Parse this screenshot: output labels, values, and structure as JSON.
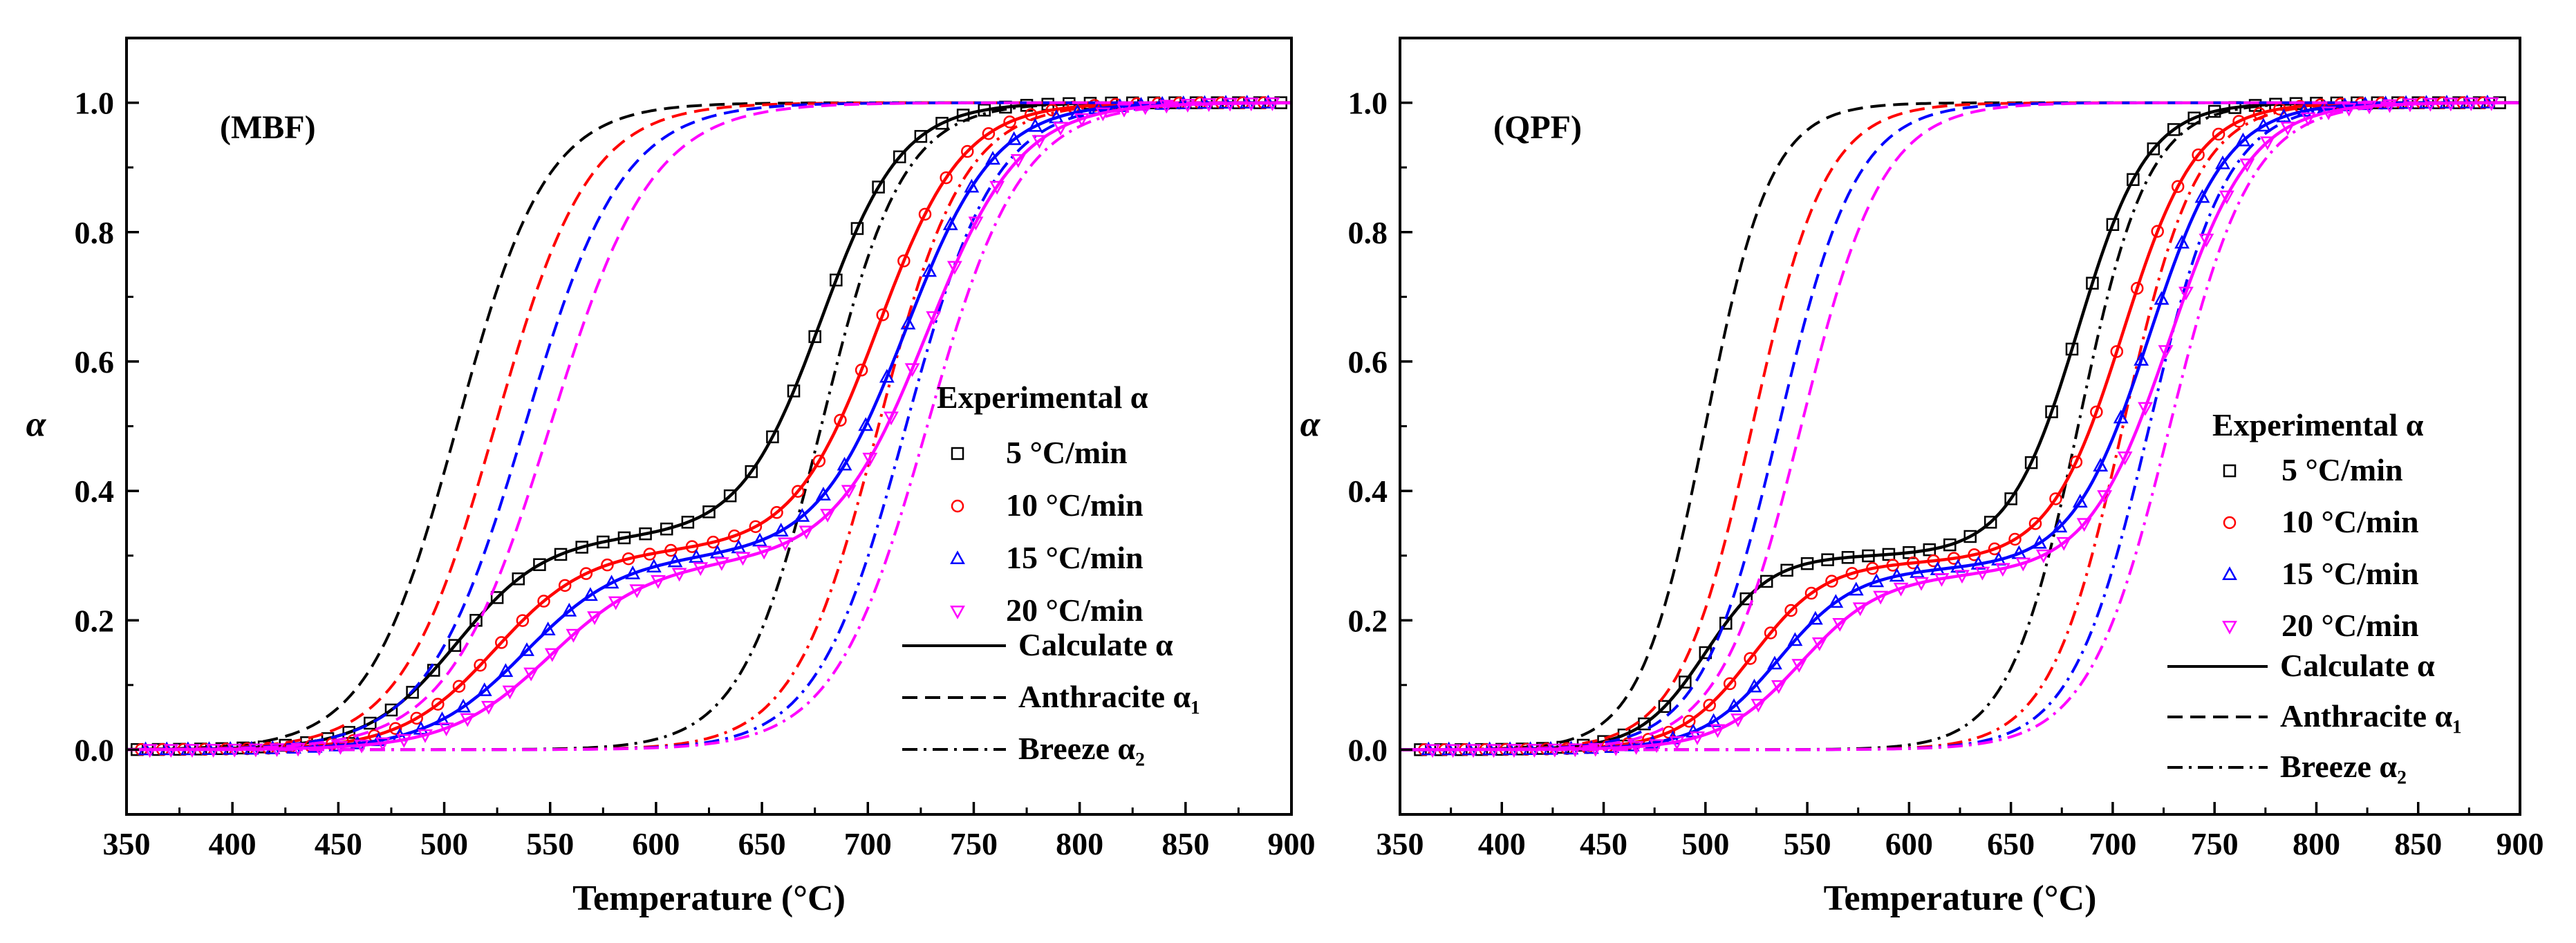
{
  "chart_data": [
    {
      "type": "line",
      "title": "(MBF)",
      "xlabel": "Temperature (°C)",
      "ylabel": "α",
      "xlim": [
        350,
        900
      ],
      "ylim": [
        -0.1,
        1.1
      ],
      "xticks": [
        350,
        400,
        450,
        500,
        550,
        600,
        650,
        700,
        750,
        800,
        850,
        900
      ],
      "xtick_labels": [
        "350",
        "400",
        "450",
        "500",
        "550",
        "600",
        "650",
        "700",
        "750",
        "800",
        "850",
        "900"
      ],
      "yticks": [
        0.0,
        0.2,
        0.4,
        0.6,
        0.8,
        1.0
      ],
      "ytick_labels": [
        "0.0",
        "0.2",
        "0.4",
        "0.6",
        "0.8",
        "1.0"
      ],
      "legend": {
        "header": "Experimental α",
        "entries": [
          {
            "label": "5 °C/min",
            "marker": "square",
            "color": "#000000"
          },
          {
            "label": "10 °C/min",
            "marker": "circle",
            "color": "#ff0000"
          },
          {
            "label": "15 °C/min",
            "marker": "triangle-up",
            "color": "#0000ff"
          },
          {
            "label": "20 °C/min",
            "marker": "triangle-down",
            "color": "#ff00ff"
          }
        ],
        "line_entries": [
          {
            "label": "Calculate α",
            "style": "solid"
          },
          {
            "label": "Anthracite α₁",
            "style": "dashed"
          },
          {
            "label": "Breeze α₂",
            "style": "dashdot"
          }
        ]
      },
      "series": [
        {
          "rate": "5 °C/min",
          "color": "#000000",
          "anthracite_t50": 506,
          "anthracite_width": 21,
          "breeze_t50": 678,
          "breeze_width": 19,
          "weight": 0.33
        },
        {
          "rate": "10 °C/min",
          "color": "#ff0000",
          "anthracite_t50": 524,
          "anthracite_width": 22,
          "breeze_t50": 705,
          "breeze_width": 20,
          "weight": 0.31
        },
        {
          "rate": "15 °C/min",
          "color": "#0000ff",
          "anthracite_t50": 538,
          "anthracite_width": 23,
          "breeze_t50": 718,
          "breeze_width": 21,
          "weight": 0.3
        },
        {
          "rate": "20 °C/min",
          "color": "#ff00ff",
          "anthracite_t50": 550,
          "anthracite_width": 24,
          "breeze_t50": 728,
          "breeze_width": 22,
          "weight": 0.29
        }
      ],
      "marker_x_start": 355,
      "marker_x_end": 895,
      "marker_x_step": 10
    },
    {
      "type": "line",
      "title": "(QPF)",
      "xlabel": "Temperature (°C)",
      "ylabel": "α",
      "xlim": [
        350,
        900
      ],
      "ylim": [
        -0.1,
        1.1
      ],
      "xticks": [
        350,
        400,
        450,
        500,
        550,
        600,
        650,
        700,
        750,
        800,
        850,
        900
      ],
      "xtick_labels": [
        "350",
        "400",
        "450",
        "500",
        "550",
        "600",
        "650",
        "700",
        "750",
        "800",
        "850",
        "900"
      ],
      "yticks": [
        0.0,
        0.2,
        0.4,
        0.6,
        0.8,
        1.0
      ],
      "ytick_labels": [
        "0.0",
        "0.2",
        "0.4",
        "0.6",
        "0.8",
        "1.0"
      ],
      "legend": {
        "header": "Experimental α",
        "entries": [
          {
            "label": "5 °C/min",
            "marker": "square",
            "color": "#000000"
          },
          {
            "label": "10 °C/min",
            "marker": "circle",
            "color": "#ff0000"
          },
          {
            "label": "15 °C/min",
            "marker": "triangle-up",
            "color": "#0000ff"
          },
          {
            "label": "20 °C/min",
            "marker": "triangle-down",
            "color": "#ff00ff"
          }
        ],
        "line_entries": [
          {
            "label": "Calculate α",
            "style": "solid"
          },
          {
            "label": "Anthracite α₁",
            "style": "dashed"
          },
          {
            "label": "Breeze α₂",
            "style": "dashdot"
          }
        ]
      },
      "series": [
        {
          "rate": "5 °C/min",
          "color": "#000000",
          "anthracite_t50": 500,
          "anthracite_width": 16,
          "breeze_t50": 683,
          "breeze_width": 17,
          "weight": 0.3
        },
        {
          "rate": "10 °C/min",
          "color": "#ff0000",
          "anthracite_t50": 523,
          "anthracite_width": 18,
          "breeze_t50": 705,
          "breeze_width": 18,
          "weight": 0.29
        },
        {
          "rate": "15 °C/min",
          "color": "#0000ff",
          "anthracite_t50": 536,
          "anthracite_width": 19,
          "breeze_t50": 718,
          "breeze_width": 19,
          "weight": 0.28
        },
        {
          "rate": "20 °C/min",
          "color": "#ff00ff",
          "anthracite_t50": 547,
          "anthracite_width": 20,
          "breeze_t50": 728,
          "breeze_width": 20,
          "weight": 0.27
        }
      ],
      "marker_x_start": 360,
      "marker_x_end": 890,
      "marker_x_step": 10
    }
  ]
}
